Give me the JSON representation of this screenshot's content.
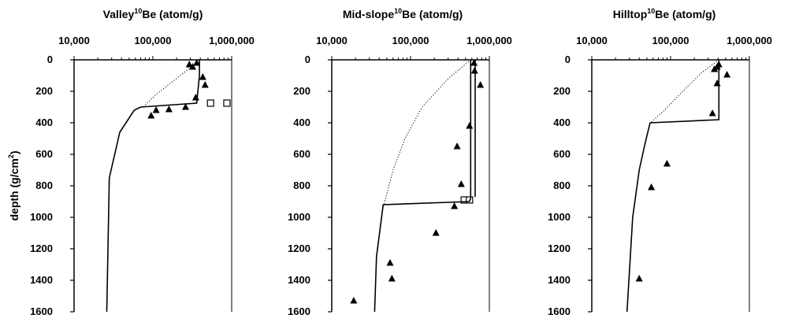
{
  "chart_data": [
    {
      "type": "scatter",
      "title_prefix": "Valley",
      "title_sup": "10",
      "title_suffix": "Be (atom/g)",
      "x_scale": "log",
      "xlim": [
        10000,
        1000000
      ],
      "ylim": [
        0,
        1600
      ],
      "y_reversed": true,
      "x_ticks": [
        10000,
        100000,
        1000000
      ],
      "x_tick_labels": [
        "10,000",
        "100,000",
        "1,000,000"
      ],
      "y_ticks": [
        0,
        200,
        400,
        600,
        800,
        1000,
        1200,
        1400,
        1600
      ],
      "y_tick_labels": [
        "0",
        "200",
        "400",
        "600",
        "800",
        "1000",
        "1200",
        "1400",
        "1600"
      ],
      "ylabel_main": "depth (g/cm",
      "ylabel_sup": "2",
      "ylabel_end": ")",
      "grid": false,
      "series": [
        {
          "marker": "triangle",
          "x": [
            290000,
            320000,
            360000,
            430000,
            460000,
            350000,
            260000,
            160000,
            110000,
            95000
          ],
          "y": [
            30,
            45,
            20,
            110,
            160,
            240,
            300,
            315,
            320,
            355
          ]
        },
        {
          "marker": "open-square",
          "x": [
            540000,
            870000
          ],
          "y": [
            275,
            275
          ]
        },
        {
          "line": "solid",
          "x": [
            390000,
            390000,
            360000,
            70000,
            58000,
            38000,
            28000,
            26000
          ],
          "y": [
            0,
            100,
            275,
            300,
            320,
            460,
            750,
            1600
          ]
        },
        {
          "line": "dotted",
          "x": [
            390000,
            250000,
            110000,
            75000
          ],
          "y": [
            0,
            80,
            220,
            300
          ]
        }
      ]
    },
    {
      "type": "scatter",
      "title_prefix": "Mid-slope",
      "title_sup": "10",
      "title_suffix": "Be (atom/g)",
      "x_scale": "log",
      "xlim": [
        10000,
        1000000
      ],
      "ylim": [
        0,
        1600
      ],
      "y_reversed": true,
      "x_ticks": [
        10000,
        100000,
        1000000
      ],
      "x_tick_labels": [
        "10,000",
        "100,000",
        "1,000,000"
      ],
      "y_ticks": [
        0,
        200,
        400,
        600,
        800,
        1000,
        1200,
        1400,
        1600
      ],
      "y_tick_labels": [
        "0",
        "200",
        "400",
        "600",
        "800",
        "1000",
        "1200",
        "1400",
        "1600"
      ],
      "grid": false,
      "series": [
        {
          "marker": "triangle",
          "x": [
            640000,
            650000,
            770000,
            560000,
            390000,
            440000,
            360000,
            210000,
            55000,
            58000,
            19000
          ],
          "y": [
            20,
            70,
            160,
            420,
            550,
            790,
            930,
            1100,
            1290,
            1390,
            1530
          ]
        },
        {
          "marker": "open-square",
          "x": [
            480000,
            560000
          ],
          "y": [
            890,
            890
          ]
        },
        {
          "line": "solid",
          "x": [
            580000,
            580000,
            560000,
            45000,
            37000,
            35000
          ],
          "y": [
            0,
            880,
            900,
            920,
            1250,
            1600
          ]
        },
        {
          "line": "dotted",
          "x": [
            580000,
            300000,
            140000,
            85000,
            60000,
            46000
          ],
          "y": [
            0,
            120,
            300,
            500,
            700,
            920
          ]
        },
        {
          "line": "solid",
          "x": [
            660000,
            660000
          ],
          "y": [
            0,
            870
          ]
        }
      ]
    },
    {
      "type": "scatter",
      "title_prefix": "Hilltop",
      "title_sup": "10",
      "title_suffix": "Be (atom/g)",
      "x_scale": "log",
      "xlim": [
        10000,
        1000000
      ],
      "ylim": [
        0,
        1600
      ],
      "y_reversed": true,
      "x_ticks": [
        10000,
        100000,
        1000000
      ],
      "x_tick_labels": [
        "10,000",
        "100,000",
        "1,000,000"
      ],
      "y_ticks": [
        0,
        200,
        400,
        600,
        800,
        1000,
        1200,
        1400,
        1600
      ],
      "y_tick_labels": [
        "0",
        "200",
        "400",
        "600",
        "800",
        "1000",
        "1200",
        "1400",
        "1600"
      ],
      "grid": false,
      "series": [
        {
          "marker": "triangle",
          "x": [
            410000,
            390000,
            360000,
            520000,
            390000,
            340000,
            90000,
            57000,
            40000
          ],
          "y": [
            30,
            45,
            60,
            95,
            150,
            340,
            660,
            810,
            1390
          ]
        },
        {
          "line": "solid",
          "x": [
            410000,
            410000,
            55000,
            48000,
            40000,
            33000,
            28000
          ],
          "y": [
            0,
            380,
            400,
            520,
            700,
            1000,
            1600
          ]
        },
        {
          "line": "dotted",
          "x": [
            410000,
            250000,
            130000,
            80000,
            55000
          ],
          "y": [
            0,
            80,
            220,
            330,
            400
          ]
        }
      ]
    }
  ]
}
